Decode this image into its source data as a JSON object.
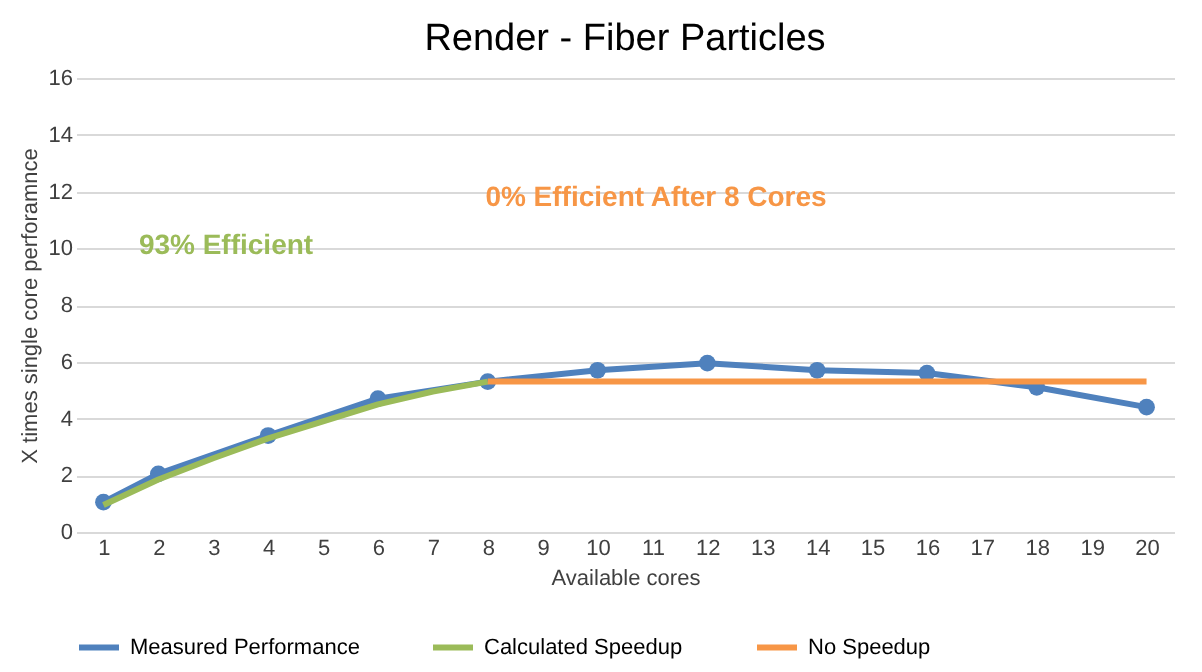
{
  "chart_data": {
    "type": "line",
    "title": "Render - Fiber Particles",
    "xlabel": "Available cores",
    "ylabel": "X times single core perforamnce",
    "xlim": [
      0.5,
      20.5
    ],
    "xticks": [
      1,
      2,
      3,
      4,
      5,
      6,
      7,
      8,
      9,
      10,
      11,
      12,
      13,
      14,
      15,
      16,
      17,
      18,
      19,
      20
    ],
    "ylim": [
      0,
      16
    ],
    "yticks": [
      0,
      2,
      4,
      6,
      8,
      10,
      12,
      14,
      16
    ],
    "grid": "y",
    "legend": "bottom",
    "annotations": [
      "93% Efficient",
      "0% Efficient After 8 Cores"
    ],
    "series": [
      {
        "name": "Measured Performance",
        "color": "#4f81bd",
        "marker": "circle",
        "x": [
          1,
          2,
          4,
          6,
          8,
          10,
          12,
          14,
          16,
          18,
          20
        ],
        "values": [
          1.05,
          2.05,
          3.4,
          4.7,
          5.3,
          5.7,
          5.95,
          5.7,
          5.6,
          5.1,
          4.4
        ]
      },
      {
        "name": "Calculated Speedup",
        "color": "#9bbb59",
        "marker": "none",
        "x": [
          1,
          2,
          3,
          4,
          5,
          6,
          7,
          8
        ],
        "values": [
          0.95,
          1.85,
          2.6,
          3.3,
          3.9,
          4.5,
          4.95,
          5.3
        ]
      },
      {
        "name": "No Speedup",
        "color": "#f79646",
        "marker": "none",
        "x": [
          8,
          20
        ],
        "values": [
          5.3,
          5.3
        ]
      }
    ]
  }
}
